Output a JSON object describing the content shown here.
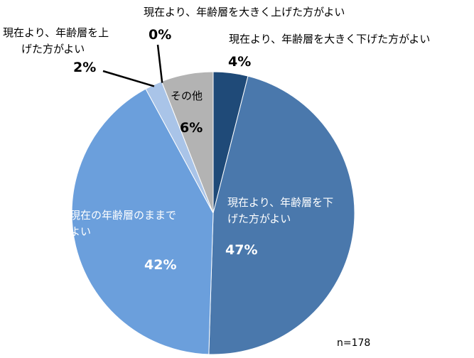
{
  "chart_data": {
    "type": "pie",
    "note": "n=178",
    "slices": [
      {
        "label": "現在より、年齢層を大きく下げた方がよい",
        "value": 4,
        "value_text": "4%",
        "color": "#1f4a78"
      },
      {
        "label": "現在より、年齢層を下げた方がよい",
        "value": 47,
        "value_text": "47%",
        "color": "#4a78ac"
      },
      {
        "label": "現在の年齢層のままでよい",
        "value": 42,
        "value_text": "42%",
        "color": "#6b9fdc"
      },
      {
        "label": "現在より、年齢層を上げた方がよい",
        "value": 2,
        "value_text": "2%",
        "color": "#a9c4e8"
      },
      {
        "label": "現在より、年齢層を大きく上げた方がよい",
        "value": 0,
        "value_text": "0%",
        "color": "#c9d9ee"
      },
      {
        "label": "その他",
        "value": 6,
        "value_text": "6%",
        "color": "#b3b3b3"
      }
    ]
  }
}
